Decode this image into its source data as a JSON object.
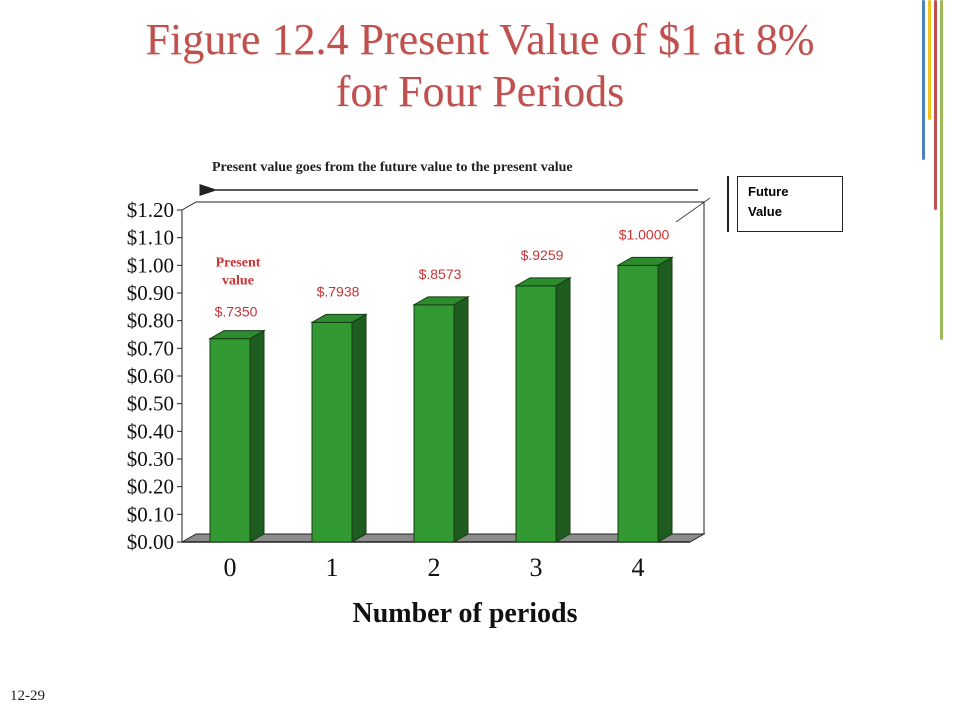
{
  "slide": {
    "title_line1": "Figure 12.4 Present Value of $1 at 8%",
    "title_line2": "for Four Periods",
    "slide_number": "12-29",
    "arrow_caption": "Present value goes from the future value to the present value",
    "callout_line1": "Future",
    "callout_line2": "Value",
    "present_value_note_line1": "Present",
    "present_value_note_line2": "value"
  },
  "colors": {
    "title": "#c0504d",
    "bar_front": "#339933",
    "bar_side": "#1f5c1f",
    "bar_top": "#2e8b2e",
    "data_label": "#cc3333",
    "floor": "#8c8c8c",
    "deco": [
      "#4f81bd",
      "#f0c419",
      "#c0504d",
      "#9bbb59"
    ]
  },
  "chart_data": {
    "type": "bar",
    "categories": [
      "0",
      "1",
      "2",
      "3",
      "4"
    ],
    "values": [
      0.735,
      0.7938,
      0.8573,
      0.9259,
      1.0
    ],
    "data_labels": [
      "$.7350",
      "$.7938",
      "$.8573",
      "$.9259",
      "$1.0000"
    ],
    "ylim": [
      0,
      1.2
    ],
    "yticks": [
      "$0.00",
      "$0.10",
      "$0.20",
      "$0.30",
      "$0.40",
      "$0.50",
      "$0.60",
      "$0.70",
      "$0.80",
      "$0.90",
      "$1.00",
      "$1.10",
      "$1.20"
    ],
    "xlabel": "Number of periods",
    "ylabel": ""
  }
}
